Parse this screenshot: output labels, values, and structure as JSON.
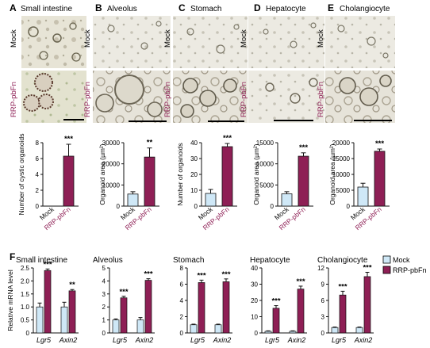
{
  "colors": {
    "mock": "#cfe8f7",
    "treated": "#8e1f55",
    "axis": "#111111",
    "treated_text": "#8e1f55"
  },
  "figure_f_letter": "F",
  "panels": [
    {
      "letter": "A",
      "title": "Small intestine",
      "image_labels": [
        "Mock",
        "RRP-pbFn"
      ],
      "images": {
        "top": "small-intestine organoid micrograph mock: scattered budding organoids on light background",
        "bottom": "small-intestine organoid micrograph treated: large cystic organoids with dark rims"
      }
    },
    {
      "letter": "B",
      "title": "Alveolus",
      "image_labels": [
        "Mock",
        "RRP-pbFn"
      ]
    },
    {
      "letter": "C",
      "title": "Stomach",
      "image_labels": [
        "Mock",
        "RRP-pbFn"
      ]
    },
    {
      "letter": "D",
      "title": "Hepatocyte",
      "image_labels": [
        "Mock",
        "RRP-pbFn"
      ]
    },
    {
      "letter": "E",
      "title": "Cholangiocyte",
      "image_labels": [
        "Mock",
        "RRP-pbFn"
      ]
    }
  ],
  "chart_data": [
    {
      "id": "A",
      "type": "bar",
      "ylabel": "Number of cystic organoids",
      "ylim": [
        0,
        8
      ],
      "yticks": [
        "0",
        "2",
        "4",
        "6",
        "8"
      ],
      "categories": [
        "Mock",
        "RRP-pbFn"
      ],
      "values": [
        0,
        6.3
      ],
      "errors": [
        0,
        1.5
      ],
      "significance": "***"
    },
    {
      "id": "B",
      "type": "bar",
      "ylabel": "Organoid area (µm²)",
      "ylim": [
        0,
        30000
      ],
      "yticks": [
        "0",
        "10000",
        "20000",
        "30000"
      ],
      "categories": [
        "Mock",
        "RRP-pbFn"
      ],
      "values": [
        5700,
        23200
      ],
      "errors": [
        1100,
        4300
      ],
      "significance": "**"
    },
    {
      "id": "C",
      "type": "bar",
      "ylabel": "Number of organoids",
      "ylim": [
        0,
        40
      ],
      "yticks": [
        "0",
        "10",
        "20",
        "30",
        "40"
      ],
      "categories": [
        "Mock",
        "RRP-pbFn"
      ],
      "values": [
        8,
        37.5
      ],
      "errors": [
        2.5,
        2
      ],
      "significance": "***"
    },
    {
      "id": "D",
      "type": "bar",
      "ylabel": "Organoid area (µm²)",
      "ylim": [
        0,
        15000
      ],
      "yticks": [
        "0",
        "5000",
        "10000",
        "15000"
      ],
      "categories": [
        "Mock",
        "RRP-pbFn"
      ],
      "values": [
        2900,
        11800
      ],
      "errors": [
        500,
        800
      ],
      "significance": "***"
    },
    {
      "id": "E",
      "type": "bar",
      "ylabel": "Organoid area (µm²)",
      "ylim": [
        0,
        20000
      ],
      "yticks": [
        "0",
        "5000",
        "10000",
        "15000",
        "20000"
      ],
      "categories": [
        "Mock",
        "RRP-pbFn"
      ],
      "values": [
        6000,
        17300
      ],
      "errors": [
        1200,
        700
      ],
      "significance": "***"
    },
    {
      "id": "F1",
      "type": "bar",
      "title": "Small intestine",
      "ylabel": "Relative mRNA level",
      "ylim": [
        0,
        2.5
      ],
      "yticks": [
        "0",
        "0.5",
        "1.0",
        "1.5",
        "2.0",
        "2.5"
      ],
      "categories": [
        "Lgr5",
        "Axin2"
      ],
      "series": [
        {
          "name": "Mock",
          "values": [
            1.0,
            1.0
          ],
          "errors": [
            0.15,
            0.18
          ]
        },
        {
          "name": "RRP-pbFn",
          "values": [
            2.4,
            1.62
          ],
          "errors": [
            0.06,
            0.05
          ]
        }
      ],
      "significance": [
        "***",
        "**"
      ]
    },
    {
      "id": "F2",
      "type": "bar",
      "title": "Alveolus",
      "ylim": [
        0,
        5
      ],
      "yticks": [
        "0",
        "1",
        "2",
        "3",
        "4",
        "5"
      ],
      "categories": [
        "Lgr5",
        "Axin2"
      ],
      "series": [
        {
          "name": "Mock",
          "values": [
            1.0,
            1.0
          ],
          "errors": [
            0.08,
            0.18
          ]
        },
        {
          "name": "RRP-pbFn",
          "values": [
            2.7,
            4.05
          ],
          "errors": [
            0.12,
            0.12
          ]
        }
      ],
      "significance": [
        "***",
        "***"
      ]
    },
    {
      "id": "F3",
      "type": "bar",
      "title": "Stomach",
      "ylim": [
        0,
        8
      ],
      "yticks": [
        "0",
        "2",
        "4",
        "6",
        "8"
      ],
      "categories": [
        "Lgr5",
        "Axin2"
      ],
      "series": [
        {
          "name": "Mock",
          "values": [
            1.0,
            1.0
          ],
          "errors": [
            0.08,
            0.08
          ]
        },
        {
          "name": "RRP-pbFn",
          "values": [
            6.2,
            6.3
          ],
          "errors": [
            0.3,
            0.35
          ]
        }
      ],
      "significance": [
        "***",
        "***"
      ]
    },
    {
      "id": "F4",
      "type": "bar",
      "title": "Hepatocyte",
      "ylim": [
        0,
        40
      ],
      "yticks": [
        "0",
        "10",
        "20",
        "30",
        "40"
      ],
      "categories": [
        "Lgr5",
        "Axin2"
      ],
      "series": [
        {
          "name": "Mock",
          "values": [
            1.0,
            1.0
          ],
          "errors": [
            0.3,
            0.3
          ]
        },
        {
          "name": "RRP-pbFn",
          "values": [
            15.2,
            27
          ],
          "errors": [
            1.6,
            1.8
          ]
        }
      ],
      "significance": [
        "***",
        "***"
      ]
    },
    {
      "id": "F5",
      "type": "bar",
      "title": "Cholangiocyte",
      "ylim": [
        0,
        12
      ],
      "yticks": [
        "0",
        "3",
        "6",
        "9",
        "12"
      ],
      "categories": [
        "Lgr5",
        "Axin2"
      ],
      "series": [
        {
          "name": "Mock",
          "values": [
            1.0,
            1.0
          ],
          "errors": [
            0.1,
            0.1
          ]
        },
        {
          "name": "RRP-pbFn",
          "values": [
            7.0,
            10.4
          ],
          "errors": [
            0.7,
            0.8
          ]
        }
      ],
      "significance": [
        "***",
        "***"
      ]
    }
  ],
  "legend": [
    {
      "label": "Mock",
      "color": "#cfe8f7"
    },
    {
      "label": "RRP-pbFn",
      "color": "#8e1f55"
    }
  ]
}
